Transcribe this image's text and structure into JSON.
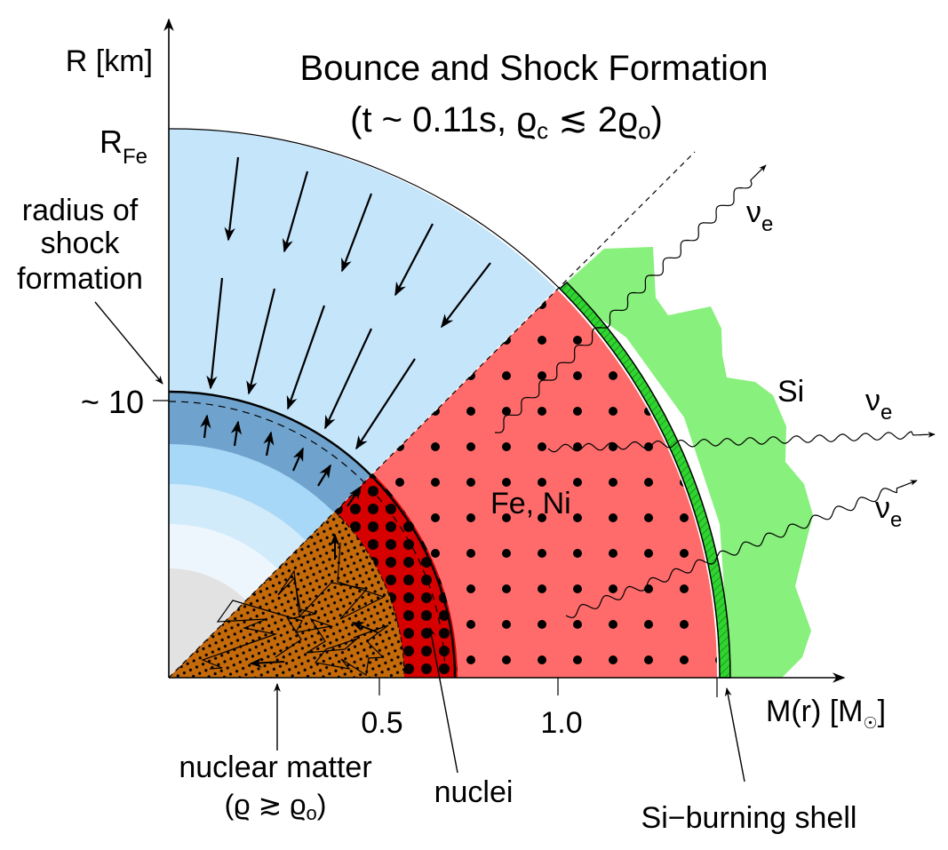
{
  "title": {
    "line1": "Bounce and Shock Formation",
    "line2_prefix": "(t ~ 0.11s, ϱ",
    "line2_sub_c": "c",
    "line2_mid": " ≲ 2ϱ",
    "line2_sub_o": "o",
    "line2_suffix": ")"
  },
  "axes": {
    "y_label": "R [km]",
    "x_label_prefix": "M(r) [M",
    "x_label_sun": "☉",
    "x_label_suffix": "]",
    "y_ticks": [
      {
        "label_main": "R",
        "label_sub": "Fe"
      },
      {
        "label_main": "~ 10",
        "label_sub": ""
      }
    ],
    "x_ticks": [
      {
        "label": "0.5",
        "value": 0.5
      },
      {
        "label": "1.0",
        "value": 1.0
      }
    ]
  },
  "annotations": {
    "shock_radius": [
      "radius of",
      "shock",
      "formation"
    ],
    "fe_ni": "Fe, Ni",
    "si": "Si",
    "neutrino": "ν",
    "neutrino_sub": "e",
    "nuclear_matter": "nuclear matter",
    "nuclear_matter_cond_prefix": "(ϱ ≳ ϱ",
    "nuclear_matter_cond_sub": "o",
    "nuclear_matter_cond_suffix": ")",
    "nuclei": "nuclei",
    "si_burning_shell": "Si−burning shell"
  },
  "colors": {
    "infall_blue": "#c5e5fa",
    "shock_blue": "#6fa3cd",
    "band_blue_1": "#a8d8f8",
    "band_blue_2": "#d2ebfb",
    "band_blue_3": "#eef6fd",
    "core_gray": "#e2e2e2",
    "fe_ni_red": "#ff6b6b",
    "nuclei_red": "#d60000",
    "nuclear_orange": "#c46a0b",
    "si_green": "#88f07c",
    "shell_green": "#2fd52f"
  }
}
